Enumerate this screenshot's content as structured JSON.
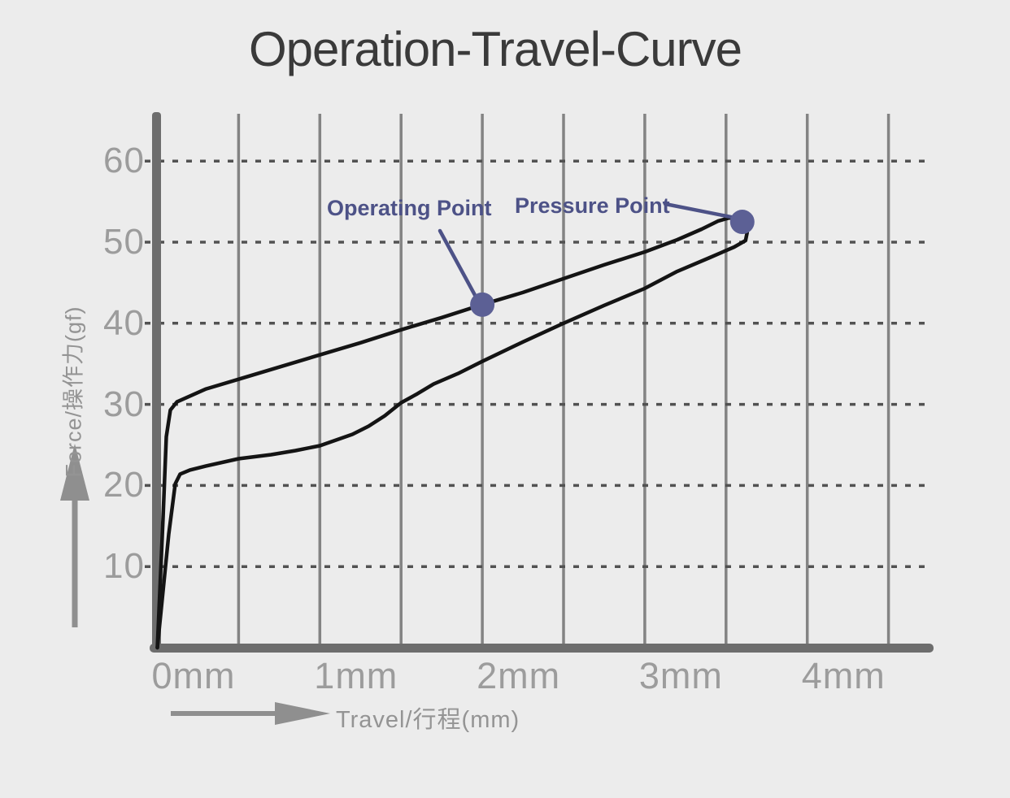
{
  "title": "Operation-Travel-Curve",
  "colors": {
    "background": "#ececec",
    "title_text": "#3a3a3a",
    "axis_bar": "#6d6d6d",
    "vertical_grid": "#838383",
    "horizontal_grid_dashed": "#525252",
    "tick_label": "#9c9c9c",
    "axis_label": "#949494",
    "arrow": "#8f8f8f",
    "curve": "#141414",
    "accent_annotation": "#4d5287",
    "marker_dot": "#5c6095"
  },
  "icons": {
    "y_axis_arrow": "up-arrow-icon",
    "x_axis_arrow": "right-arrow-icon"
  },
  "chart_data": {
    "type": "line",
    "title": "Operation-Travel-Curve",
    "xlabel": "Travel/行程(mm)",
    "ylabel": "Force/操作力(gf)",
    "x_unit": "mm",
    "y_unit": "gf",
    "x_ticks": [
      "0mm",
      "1mm",
      "2mm",
      "3mm",
      "4mm"
    ],
    "x_tick_values": [
      0,
      1,
      2,
      3,
      4
    ],
    "y_ticks": [
      60,
      50,
      40,
      30,
      20,
      10
    ],
    "xlim": [
      0,
      4.8
    ],
    "ylim": [
      0,
      66
    ],
    "grid": {
      "vertical": {
        "style": "solid",
        "interval_mm": 0.5,
        "from_mm": 0.5,
        "to_mm": 4.5
      },
      "horizontal": {
        "style": "dotted",
        "interval_gf": 10,
        "from_gf": 10,
        "to_gf": 60
      }
    },
    "legend": "none",
    "series": [
      {
        "name": "press (upper curve)",
        "points": [
          [
            0,
            0
          ],
          [
            0.035,
            16
          ],
          [
            0.055,
            26
          ],
          [
            0.08,
            29.3
          ],
          [
            0.12,
            30.3
          ],
          [
            0.3,
            31.9
          ],
          [
            0.5,
            33.1
          ],
          [
            0.75,
            34.6
          ],
          [
            1.0,
            36.1
          ],
          [
            1.25,
            37.6
          ],
          [
            1.5,
            39.2
          ],
          [
            1.75,
            40.7
          ],
          [
            2.0,
            42.3
          ],
          [
            2.25,
            43.8
          ],
          [
            2.5,
            45.5
          ],
          [
            2.75,
            47.2
          ],
          [
            3.0,
            48.8
          ],
          [
            3.2,
            50.3
          ],
          [
            3.35,
            51.6
          ],
          [
            3.45,
            52.6
          ],
          [
            3.52,
            53.0
          ],
          [
            3.56,
            52.9
          ]
        ]
      },
      {
        "name": "release (lower curve)",
        "points": [
          [
            3.56,
            52.9
          ],
          [
            3.6,
            52.3
          ],
          [
            3.63,
            51.2
          ],
          [
            3.62,
            50.2
          ],
          [
            3.55,
            49.4
          ],
          [
            3.4,
            48.1
          ],
          [
            3.2,
            46.4
          ],
          [
            3.0,
            44.3
          ],
          [
            2.75,
            42.2
          ],
          [
            2.5,
            40.0
          ],
          [
            2.25,
            37.7
          ],
          [
            2.0,
            35.3
          ],
          [
            1.85,
            33.8
          ],
          [
            1.7,
            32.5
          ],
          [
            1.6,
            31.3
          ],
          [
            1.5,
            30.2
          ],
          [
            1.4,
            28.6
          ],
          [
            1.3,
            27.3
          ],
          [
            1.2,
            26.3
          ],
          [
            1.1,
            25.6
          ],
          [
            1.0,
            24.9
          ],
          [
            0.85,
            24.3
          ],
          [
            0.7,
            23.8
          ],
          [
            0.5,
            23.3
          ],
          [
            0.3,
            22.4
          ],
          [
            0.2,
            21.9
          ],
          [
            0.14,
            21.4
          ],
          [
            0.11,
            20.2
          ],
          [
            0.07,
            14
          ],
          [
            0.02,
            4
          ],
          [
            0,
            0
          ]
        ]
      }
    ],
    "annotations": [
      {
        "label": "Operating Point",
        "x": 2.0,
        "y": 42.3
      },
      {
        "label": "Pressure Point",
        "x": 3.6,
        "y": 52.5
      }
    ]
  }
}
